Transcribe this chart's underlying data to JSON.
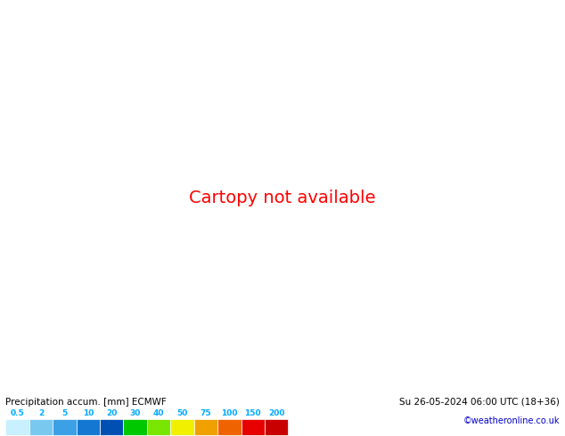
{
  "title_left": "Precipitation accum. [mm] ECMWF",
  "title_right": "Su 26-05-2024 06:00 UTC (18+36)",
  "credit": "©weatheronline.co.uk",
  "colorbar_values": [
    0.5,
    2,
    5,
    10,
    20,
    30,
    40,
    50,
    75,
    100,
    150,
    200
  ],
  "colorbar_colors": [
    "#c8f0ff",
    "#78c8f0",
    "#3ca0e6",
    "#1478d2",
    "#0050b4",
    "#00c800",
    "#78e600",
    "#f0f000",
    "#f0a000",
    "#f06400",
    "#e60000",
    "#c80000"
  ],
  "fig_width": 6.34,
  "fig_height": 4.9,
  "ocean_color": "#b0dff0",
  "land_dry_color": "#c8e8a0",
  "land_light_precip_color": "#d0f0e8",
  "label_color_left": "#000000",
  "label_color_right": "#000000",
  "colorbar_label_color": "#00aaff",
  "credit_color": "#0000cc",
  "border_color": "#808080",
  "coast_color": "#808080"
}
